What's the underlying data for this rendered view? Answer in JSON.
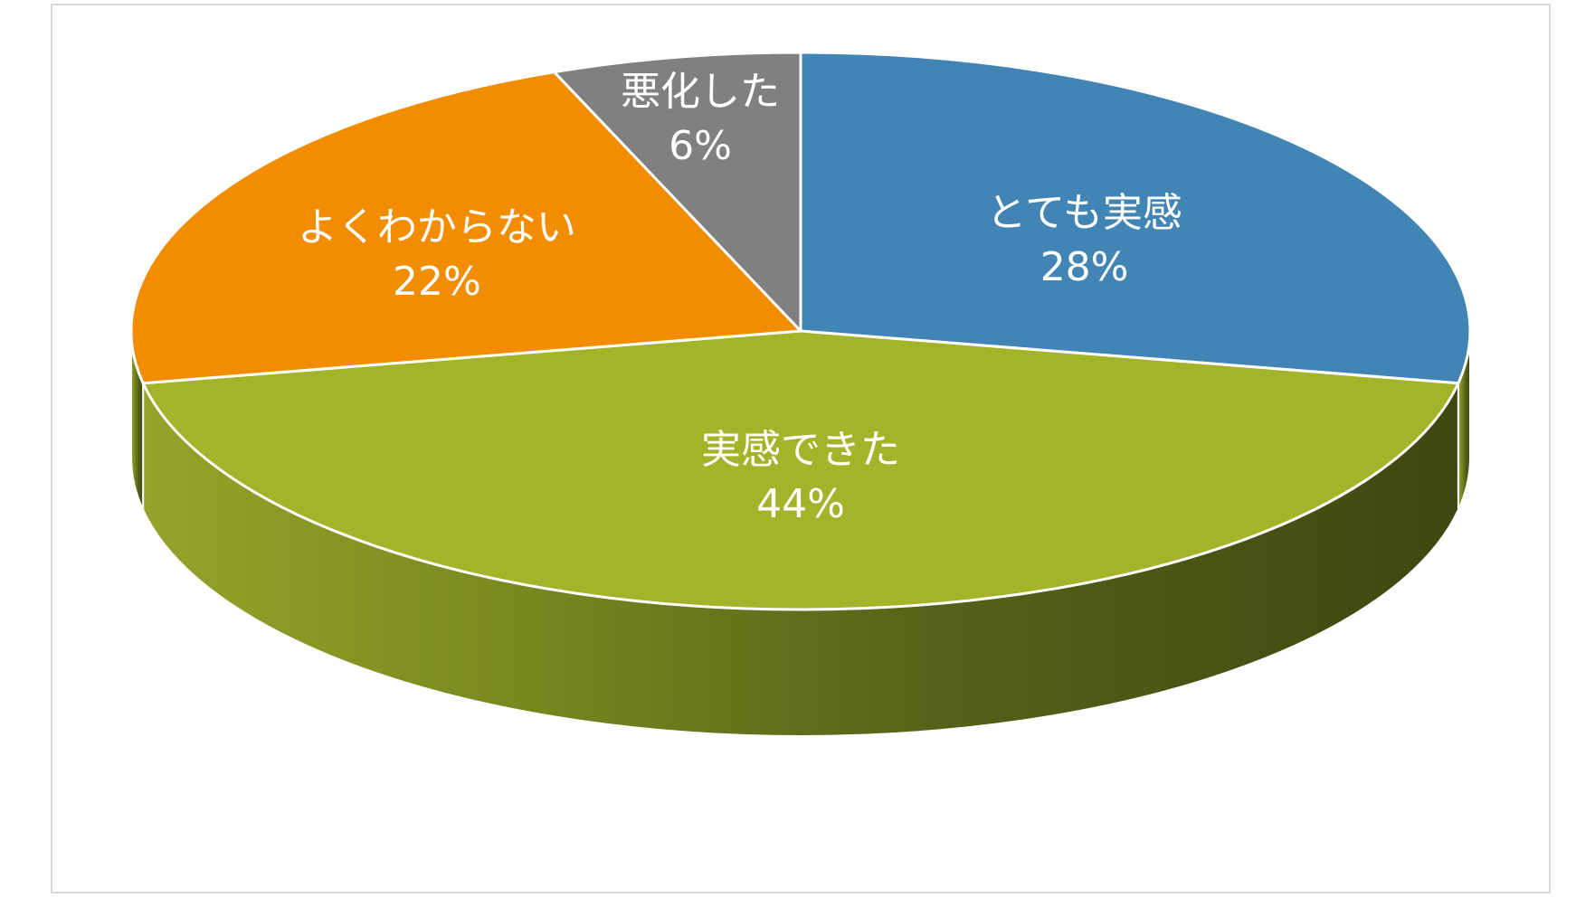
{
  "chart_data": {
    "type": "pie",
    "style": "3d",
    "title": "",
    "legend": "none",
    "slices": [
      {
        "label": "とても実感",
        "value": 28,
        "display": "28%",
        "color": "#4285b4"
      },
      {
        "label": "実感できた",
        "value": 44,
        "display": "44%",
        "color": "#a4b42a"
      },
      {
        "label": "よくわからない",
        "value": 22,
        "display": "22%",
        "color": "#f28c00"
      },
      {
        "label": "悪化した",
        "value": 6,
        "display": "6%",
        "color": "#808080"
      }
    ]
  }
}
